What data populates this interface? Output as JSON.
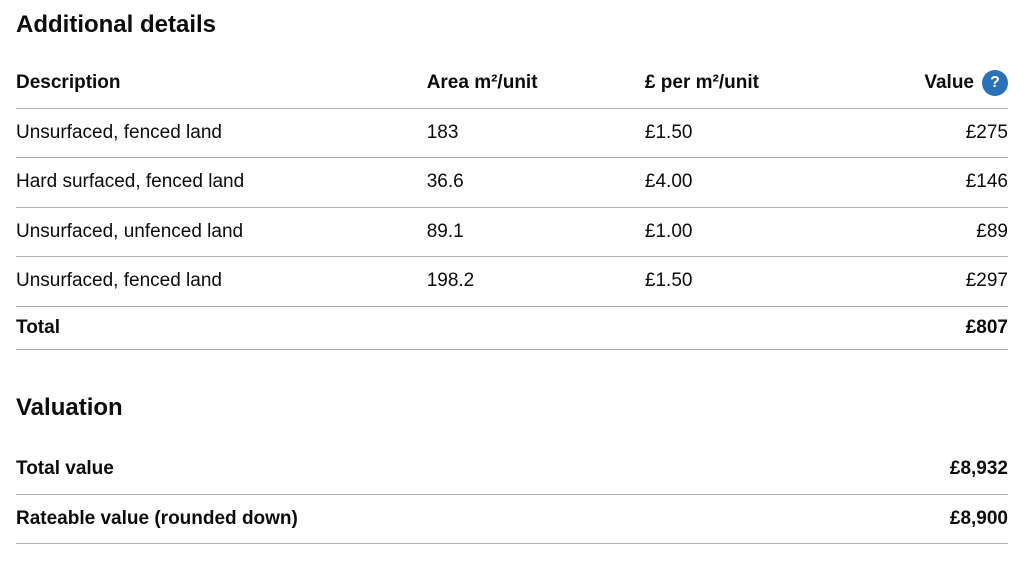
{
  "page": {
    "text_color": "#0b0c0c",
    "border_color": "#b1b4b6",
    "accent_blue": "#2b71b8"
  },
  "additional_details": {
    "heading": "Additional details",
    "columns": {
      "description": "Description",
      "area": "Area m²/unit",
      "price": "£ per m²/unit",
      "value": "Value"
    },
    "help_icon_glyph": "?",
    "rows": [
      {
        "description": "Unsurfaced, fenced land",
        "area": "183",
        "price": "£1.50",
        "value": "£275"
      },
      {
        "description": "Hard surfaced, fenced land",
        "area": "36.6",
        "price": "£4.00",
        "value": "£146"
      },
      {
        "description": "Unsurfaced, unfenced land",
        "area": "89.1",
        "price": "£1.00",
        "value": "£89"
      },
      {
        "description": "Unsurfaced, fenced land",
        "area": "198.2",
        "price": "£1.50",
        "value": "£297"
      }
    ],
    "total": {
      "label": "Total",
      "value": "£807"
    }
  },
  "valuation": {
    "heading": "Valuation",
    "rows": [
      {
        "label": "Total value",
        "value": "£8,932"
      },
      {
        "label": "Rateable value (rounded down)",
        "value": "£8,900"
      }
    ]
  }
}
